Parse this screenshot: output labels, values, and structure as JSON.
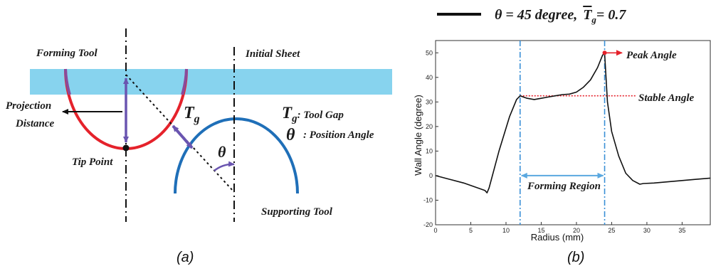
{
  "panel_a": {
    "forming_tool": "Forming Tool",
    "initial_sheet": "Initial Sheet",
    "projection_line1": "Projection",
    "projection_line2": "Distance",
    "tip_point": "Tip Point",
    "supporting_tool": "Supporting Tool",
    "tg_symbol": "T",
    "tg_sub": "g",
    "legend_tg_symbol": "T",
    "legend_tg_sub": "g",
    "legend_tg_text": ": Tool Gap",
    "theta_symbol": "θ",
    "legend_theta_symbol": "θ",
    "legend_theta_text": ": Position Angle",
    "caption": "(a)",
    "colors": {
      "sheet": "#87d3ee",
      "forming_tool": "#e5222b",
      "forming_tool_edge": "#8a4a9a",
      "supporting_tool": "#1f6fb8",
      "arrow_purple": "#6a55b0"
    }
  },
  "panel_b": {
    "legend_text": "θ = 45 degree,",
    "legend_T": "T",
    "legend_T_sub": "g",
    "legend_value": "= 0.7",
    "peak_angle": "Peak Angle",
    "stable_angle": "Stable Angle",
    "forming_region": "Forming Region",
    "caption": "(b)",
    "colors": {
      "curve": "#111111",
      "dashdot": "#3a8fd6",
      "stable_line": "#e5222b",
      "peak_arrow": "#e5222b",
      "region_arrow": "#5aa8e0"
    }
  },
  "chart_data": {
    "type": "line",
    "xlabel": "Radius (mm)",
    "ylabel": "Wall Angle (degree)",
    "xlim": [
      0,
      39
    ],
    "ylim": [
      -20,
      55
    ],
    "xticks": [
      0,
      5,
      10,
      15,
      20,
      25,
      30,
      35
    ],
    "yticks": [
      -20,
      -10,
      0,
      10,
      20,
      30,
      40,
      50
    ],
    "grid": false,
    "series": [
      {
        "name": "θ = 45 degree, Tg = 0.7",
        "x": [
          0,
          2,
          4,
          6,
          7,
          7.3,
          7.6,
          9,
          10.5,
          11.5,
          12,
          13,
          14,
          15,
          16,
          17,
          18,
          19,
          20,
          21,
          22,
          23,
          23.7,
          24,
          24.4,
          25,
          26,
          27,
          28,
          29,
          29.5,
          31,
          33,
          35,
          37,
          39
        ],
        "y": [
          0,
          -1.5,
          -3,
          -5,
          -6,
          -7,
          -5,
          10,
          24,
          31,
          32.5,
          31.5,
          31,
          31.5,
          32,
          32.5,
          33,
          33.2,
          34,
          36,
          39,
          44,
          49,
          50,
          30,
          18,
          8,
          1,
          -2,
          -3.5,
          -3.2,
          -3,
          -2.5,
          -2,
          -1.5,
          -1
        ]
      }
    ],
    "vlines": [
      12,
      24
    ],
    "stable_angle": 32.5,
    "peak_angle": 50,
    "forming_region": [
      12,
      24
    ]
  }
}
